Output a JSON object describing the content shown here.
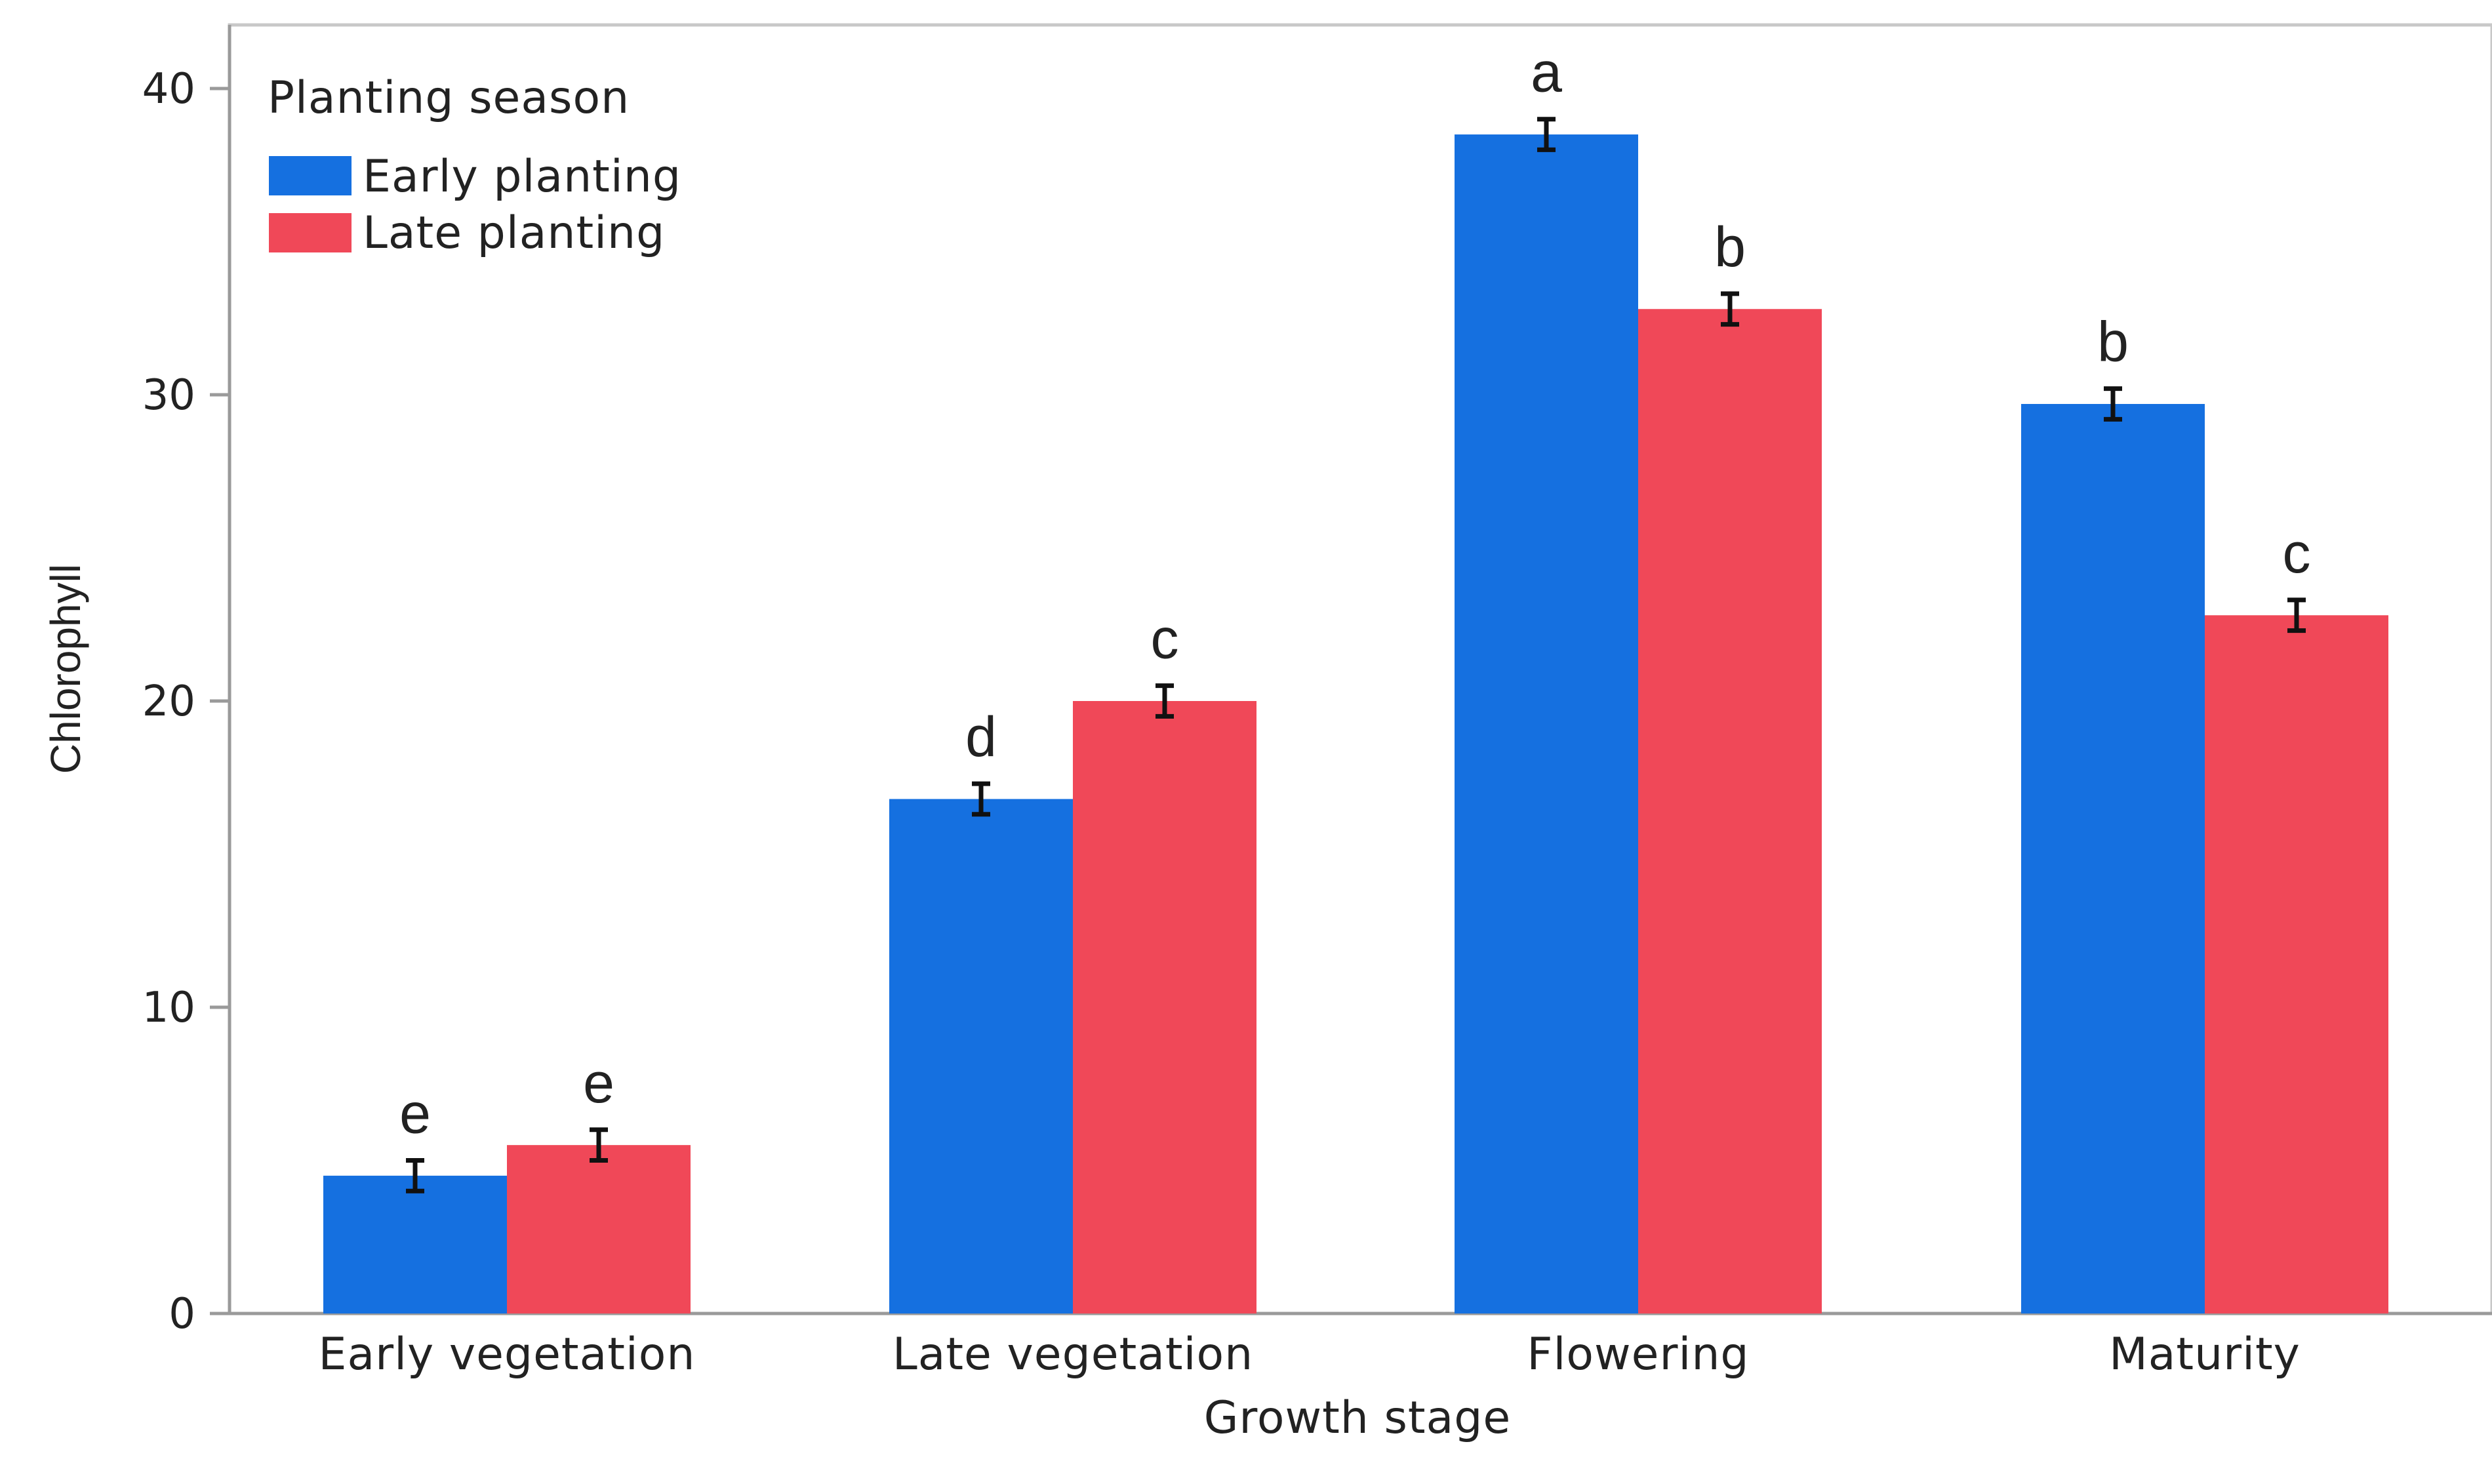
{
  "chart_data": {
    "type": "bar",
    "xlabel": "Growth stage",
    "ylabel": "Chlorophyll",
    "ylim": [
      0,
      40
    ],
    "yticks": [
      0,
      10,
      20,
      30,
      40
    ],
    "categories": [
      "Early vegetation",
      "Late vegetation",
      "Flowering",
      "Maturity"
    ],
    "legend": {
      "title": "Planting season",
      "position": "top-left"
    },
    "series": [
      {
        "name": "Early planting",
        "color": "#1570e0",
        "values": [
          4.5,
          16.8,
          38.5,
          29.7
        ],
        "error": [
          0.5,
          0.5,
          0.5,
          0.5
        ],
        "labels": [
          "e",
          "d",
          "a",
          "b"
        ]
      },
      {
        "name": "Late planting",
        "color": "#f04858",
        "values": [
          5.5,
          20.0,
          32.8,
          22.8
        ],
        "error": [
          0.5,
          0.5,
          0.5,
          0.5
        ],
        "labels": [
          "e",
          "c",
          "b",
          "c"
        ]
      }
    ]
  }
}
